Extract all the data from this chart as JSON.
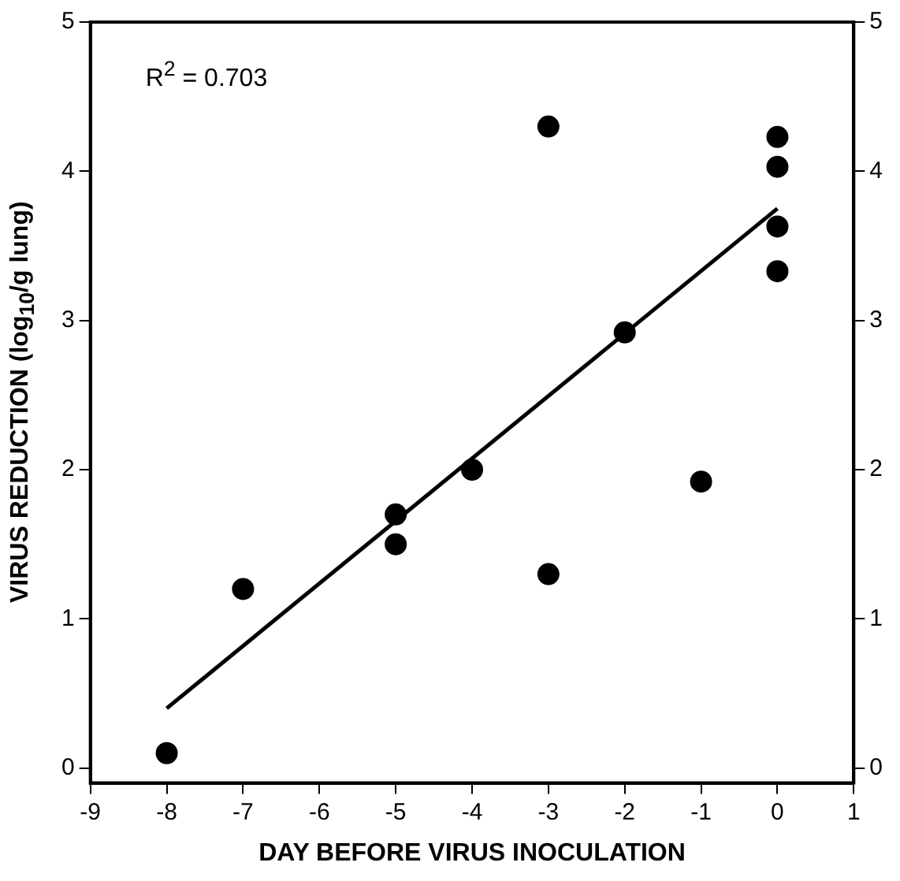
{
  "chart_data": {
    "type": "scatter",
    "xlabel": "DAY BEFORE VIRUS INOCULATION",
    "ylabel": "VIRUS REDUCTION (log$_{10}$/g lung)",
    "annotations": [
      "R$^{2}$ = 0.703"
    ],
    "series": [
      {
        "type": "scatter",
        "marker": "circle",
        "color": "#000000",
        "x": [
          -8,
          -7,
          -5,
          -5,
          -4,
          -3,
          -3,
          -2,
          -1,
          0,
          0,
          0,
          0
        ],
        "values": [
          0.1,
          1.2,
          1.7,
          1.5,
          2.0,
          4.3,
          1.3,
          2.92,
          1.92,
          4.23,
          4.03,
          3.63,
          3.33
        ]
      },
      {
        "type": "line",
        "marker": "none",
        "color": "#000000",
        "x": [
          -8,
          0
        ],
        "values": [
          0.4,
          3.75
        ]
      }
    ],
    "grid": false,
    "legend": false,
    "xlim": [
      -9,
      1
    ],
    "xticks": [
      -9,
      -8,
      -7,
      -6,
      -5,
      -4,
      -3,
      -2,
      -1,
      0,
      1
    ],
    "ylim": [
      -0.1,
      5
    ],
    "yticks": [
      0,
      1,
      2,
      3,
      4,
      5
    ],
    "y2lim": [
      -0.1,
      5
    ],
    "y2ticks": [
      0,
      1,
      2,
      3,
      4,
      5
    ]
  }
}
